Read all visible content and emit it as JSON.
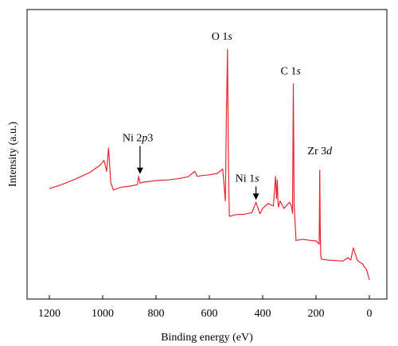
{
  "chart_data": {
    "type": "line",
    "xlabel": "Binding energy (eV)",
    "ylabel": "Intensity (a.u.)",
    "xlim": [
      1200,
      0
    ],
    "x_reversed": true,
    "xticks": [
      "1200",
      "1000",
      "800",
      "600",
      "400",
      "200",
      "0"
    ],
    "ylim": [
      0,
      100
    ],
    "y_ticks_shown": false,
    "grid": false,
    "line_color": "#e8242f",
    "series": [
      {
        "x": [
          1200,
          1150,
          1100,
          1050,
          1010,
          995,
          985,
          978,
          970,
          960,
          930,
          900,
          870,
          865,
          860,
          850,
          820,
          800,
          760,
          720,
          680,
          655,
          645,
          630,
          600,
          570,
          550,
          540,
          536,
          532,
          528,
          525,
          520,
          500,
          470,
          440,
          425,
          410,
          400,
          380,
          360,
          352,
          348,
          345,
          343,
          341,
          335,
          320,
          300,
          292,
          288,
          285,
          282,
          275,
          250,
          220,
          200,
          188,
          186,
          184,
          182,
          180,
          175,
          150,
          120,
          100,
          80,
          70,
          60,
          45,
          35,
          30,
          25,
          20,
          10,
          0
        ],
        "y": [
          38.0,
          39.8,
          42.0,
          44.5,
          47.5,
          49.5,
          45.0,
          54.5,
          40.5,
          37.5,
          38.6,
          39.0,
          39.6,
          43.0,
          40.2,
          40.6,
          41.0,
          41.3,
          41.5,
          42.0,
          42.8,
          45.0,
          43.0,
          43.3,
          43.6,
          44.2,
          46.0,
          33.0,
          67.0,
          94.5,
          46.0,
          26.8,
          26.9,
          27.5,
          27.6,
          28.3,
          32.5,
          27.8,
          30.0,
          32.0,
          31.0,
          43.0,
          34.0,
          41.5,
          33.5,
          30.5,
          33.0,
          30.0,
          32.5,
          31.0,
          28.0,
          80.5,
          32.0,
          17.0,
          17.5,
          17.0,
          16.8,
          15.5,
          45.5,
          19.0,
          11.0,
          9.5,
          9.3,
          9.0,
          8.8,
          8.6,
          10.0,
          9.0,
          14.0,
          9.0,
          8.0,
          7.8,
          7.5,
          6.5,
          5.0,
          1.0
        ]
      }
    ],
    "annotations": [
      {
        "id": "o1s",
        "prefix": "O 1",
        "italic": "s",
        "x": 532,
        "y": 94.5
      },
      {
        "id": "c1s",
        "prefix": "C 1",
        "italic": "s",
        "x": 285,
        "y": 80.5
      },
      {
        "id": "zr3d",
        "prefix": "Zr 3",
        "italic": "d",
        "x": 184,
        "y": 45.5
      },
      {
        "id": "ni2p3",
        "prefix": "Ni 2",
        "italic": "p",
        "suffix": "3",
        "x": 860,
        "y": 43.0,
        "arrow": true
      },
      {
        "id": "ni1s",
        "prefix": "Ni 1",
        "italic": "s",
        "x": 425,
        "y": 32.5,
        "arrow": true
      }
    ]
  }
}
